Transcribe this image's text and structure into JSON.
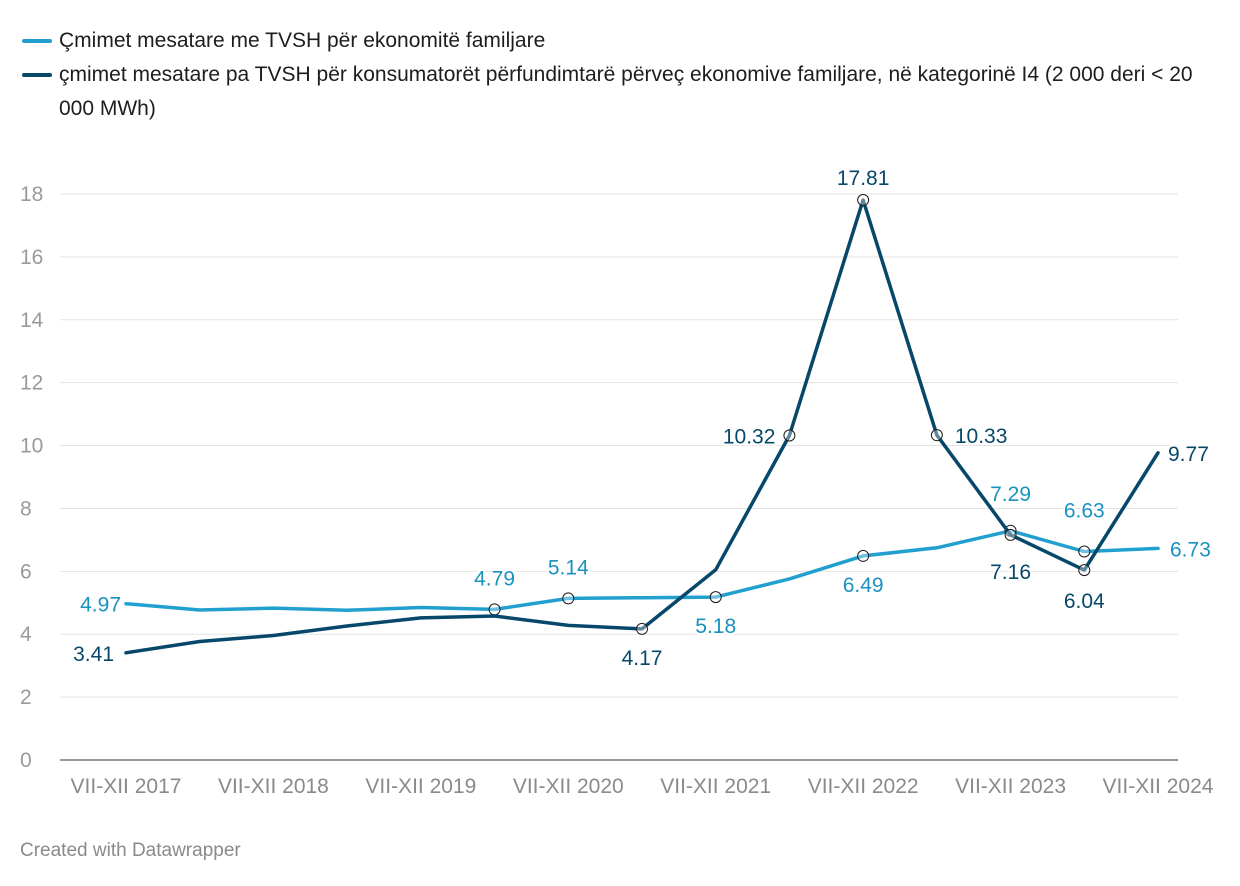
{
  "legend": {
    "series1": "Çmimet mesatare me TVSH për ekonomitë familjare",
    "series2": "çmimet mesatare pa TVSH për konsumatorët përfundimtarë përveç ekonomive familjare, në kategorinë I4 (2 000 deri < 20 000 MWh)"
  },
  "footer": "Created with Datawrapper",
  "chart_data": {
    "type": "line",
    "ylim": [
      0,
      18
    ],
    "yticks": [
      0,
      2,
      4,
      6,
      8,
      10,
      12,
      14,
      16,
      18
    ],
    "xlim": [
      2017,
      2024
    ],
    "xticks": [
      {
        "x": 2017,
        "label": "VII-XII 2017"
      },
      {
        "x": 2018,
        "label": "VII-XII 2018"
      },
      {
        "x": 2019,
        "label": "VII-XII 2019"
      },
      {
        "x": 2020,
        "label": "VII-XII 2020"
      },
      {
        "x": 2021,
        "label": "VII-XII 2021"
      },
      {
        "x": 2022,
        "label": "VII-XII 2022"
      },
      {
        "x": 2023,
        "label": "VII-XII 2023"
      },
      {
        "x": 2024,
        "label": "VII-XII 2024"
      }
    ],
    "grid": true,
    "legend_position": "top-left",
    "series": [
      {
        "name": "Çmimet mesatare me TVSH për ekonomitë familjare",
        "color": "#21a0cf",
        "points": [
          {
            "x": 2017.0,
            "y": 4.97,
            "label": "4.97"
          },
          {
            "x": 2017.5,
            "y": 4.77
          },
          {
            "x": 2018.0,
            "y": 4.83
          },
          {
            "x": 2018.5,
            "y": 4.76
          },
          {
            "x": 2019.0,
            "y": 4.85
          },
          {
            "x": 2019.5,
            "y": 4.79,
            "label": "4.79",
            "marker": true
          },
          {
            "x": 2020.0,
            "y": 5.14,
            "label": "5.14",
            "marker": true
          },
          {
            "x": 2020.5,
            "y": 5.16
          },
          {
            "x": 2021.0,
            "y": 5.18,
            "label": "5.18",
            "marker": true
          },
          {
            "x": 2021.5,
            "y": 5.76
          },
          {
            "x": 2022.0,
            "y": 6.49,
            "label": "6.49",
            "marker": true
          },
          {
            "x": 2022.5,
            "y": 6.75
          },
          {
            "x": 2023.0,
            "y": 7.29,
            "label": "7.29",
            "marker": true
          },
          {
            "x": 2023.5,
            "y": 6.63,
            "label": "6.63",
            "marker": true
          },
          {
            "x": 2024.0,
            "y": 6.73,
            "label": "6.73"
          }
        ]
      },
      {
        "name": "çmimet mesatare pa TVSH për konsumatorët përfundimtarë përveç ekonomive familjare, në kategorinë I4 (2 000 deri < 20 000 MWh)",
        "color": "#07486a",
        "points": [
          {
            "x": 2017.0,
            "y": 3.41,
            "label": "3.41"
          },
          {
            "x": 2017.5,
            "y": 3.77
          },
          {
            "x": 2018.0,
            "y": 3.96
          },
          {
            "x": 2018.5,
            "y": 4.26
          },
          {
            "x": 2019.0,
            "y": 4.52
          },
          {
            "x": 2019.5,
            "y": 4.58
          },
          {
            "x": 2020.0,
            "y": 4.28
          },
          {
            "x": 2020.5,
            "y": 4.17,
            "label": "4.17",
            "marker": true
          },
          {
            "x": 2021.0,
            "y": 6.05
          },
          {
            "x": 2021.5,
            "y": 10.32,
            "label": "10.32",
            "marker": true
          },
          {
            "x": 2022.0,
            "y": 17.81,
            "label": "17.81",
            "marker": true
          },
          {
            "x": 2022.5,
            "y": 10.33,
            "label": "10.33",
            "marker": true
          },
          {
            "x": 2023.0,
            "y": 7.16,
            "label": "7.16",
            "marker": true
          },
          {
            "x": 2023.5,
            "y": 6.04,
            "label": "6.04",
            "marker": true
          },
          {
            "x": 2024.0,
            "y": 9.77,
            "label": "9.77"
          }
        ]
      }
    ]
  }
}
